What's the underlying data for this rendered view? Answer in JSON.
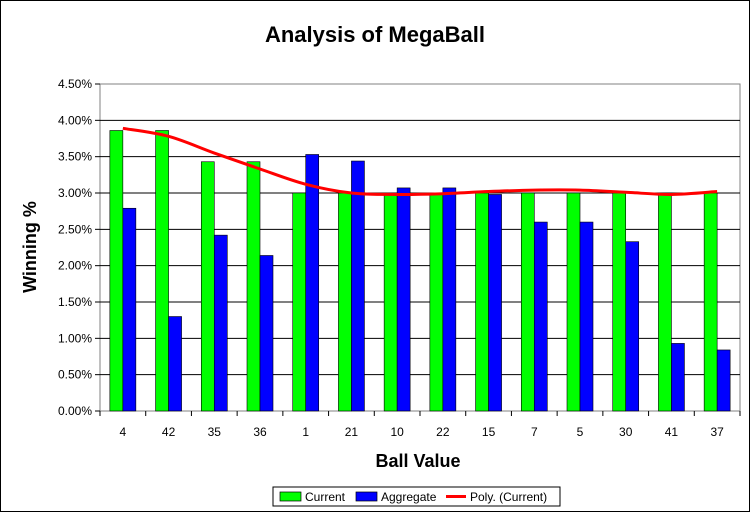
{
  "chart_data": {
    "type": "bar",
    "title": "Analysis of MegaBall",
    "xlabel": "Ball Value",
    "ylabel": "Winning %",
    "categories": [
      "4",
      "42",
      "35",
      "36",
      "1",
      "21",
      "10",
      "22",
      "15",
      "7",
      "5",
      "30",
      "41",
      "37"
    ],
    "series": [
      {
        "name": "Current",
        "color": "#00ff00",
        "values": [
          3.86,
          3.86,
          3.43,
          3.43,
          3.0,
          3.0,
          3.0,
          3.0,
          3.0,
          3.0,
          3.0,
          3.0,
          3.0,
          3.0
        ]
      },
      {
        "name": "Aggregate",
        "color": "#0000ff",
        "values": [
          2.79,
          1.3,
          2.42,
          2.14,
          3.53,
          3.44,
          3.07,
          3.07,
          2.98,
          2.6,
          2.6,
          2.33,
          0.93,
          0.84
        ]
      }
    ],
    "trendline": {
      "name": "Poly. (Current)",
      "color": "#ff0000",
      "values": [
        3.89,
        3.78,
        3.55,
        3.33,
        3.12,
        3.0,
        2.98,
        2.99,
        3.02,
        3.04,
        3.04,
        3.01,
        2.98,
        3.02
      ]
    },
    "ylim": [
      0,
      4.5
    ],
    "yticks": [
      "0.00%",
      "0.50%",
      "1.00%",
      "1.50%",
      "2.00%",
      "2.50%",
      "3.00%",
      "3.50%",
      "4.00%",
      "4.50%"
    ],
    "grid": true,
    "legend": "bottom"
  }
}
